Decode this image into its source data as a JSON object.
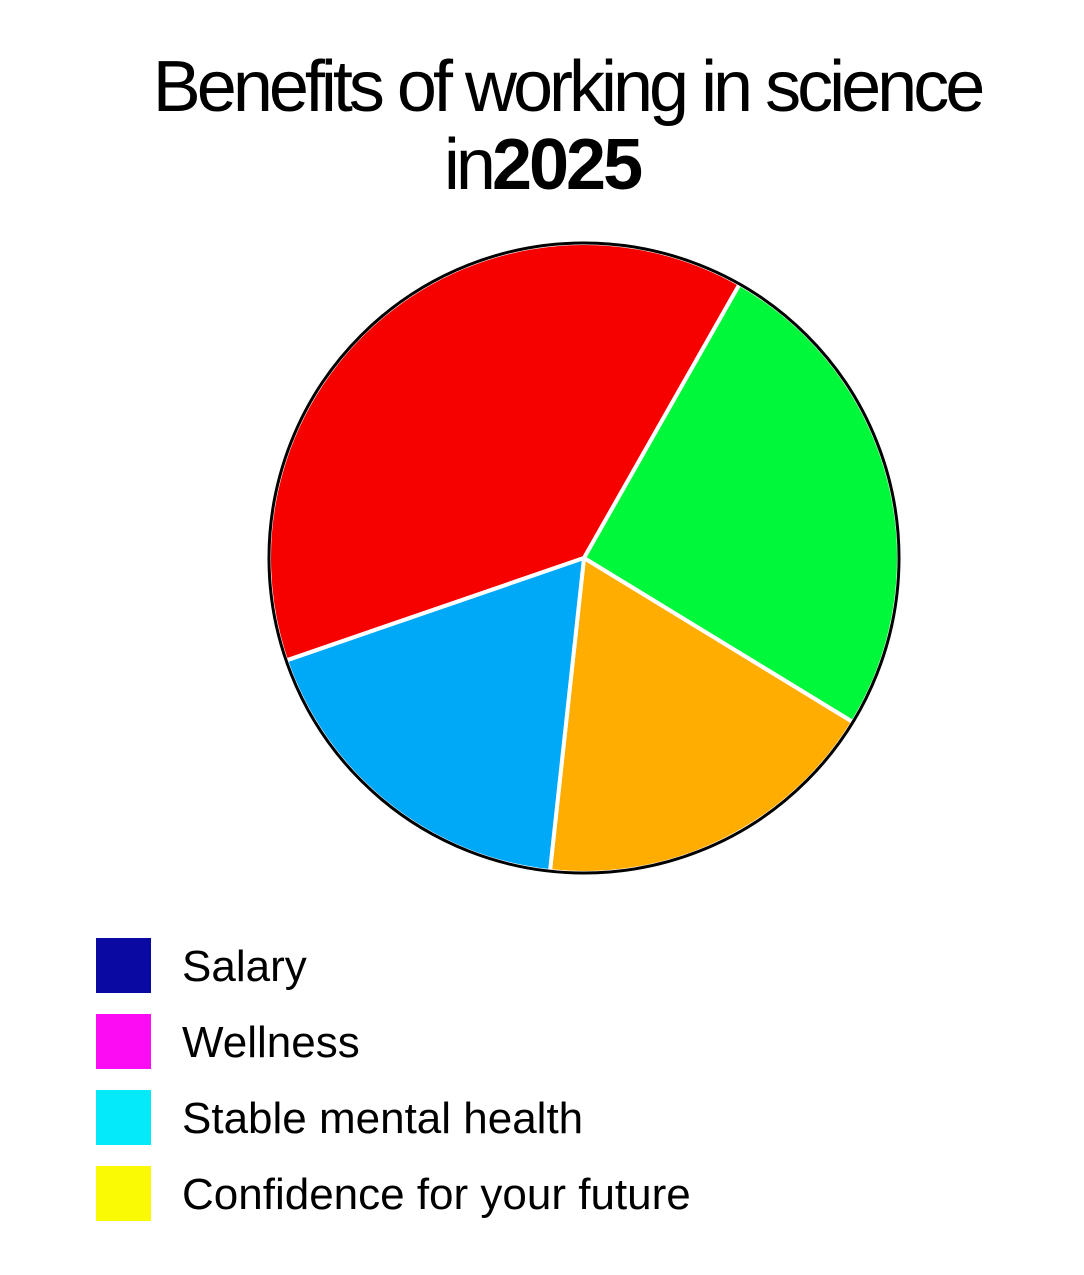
{
  "title": {
    "line1": "Benefits of working in science",
    "line2_prefix": "in",
    "line2_year": "2025"
  },
  "chart_data": {
    "type": "pie",
    "title": "Benefits of working in science in 2025",
    "slices": [
      {
        "label": "",
        "value": 38.5,
        "color": "#f70000"
      },
      {
        "label": "",
        "value": 25.5,
        "color": "#00f83a"
      },
      {
        "label": "",
        "value": 18.0,
        "color": "#ffad00"
      },
      {
        "label": "",
        "value": 18.0,
        "color": "#00a8f8"
      }
    ],
    "start_angle_deg": -109,
    "direction": "clockwise",
    "legend_position": "bottom-left",
    "legend": [
      {
        "label": "Salary",
        "color": "#0a0aa3"
      },
      {
        "label": "Wellness",
        "color": "#fb0cf2"
      },
      {
        "label": "Stable mental health",
        "color": "#05eafb"
      },
      {
        "label": "Confidence for your future",
        "color": "#fafa05"
      }
    ]
  }
}
